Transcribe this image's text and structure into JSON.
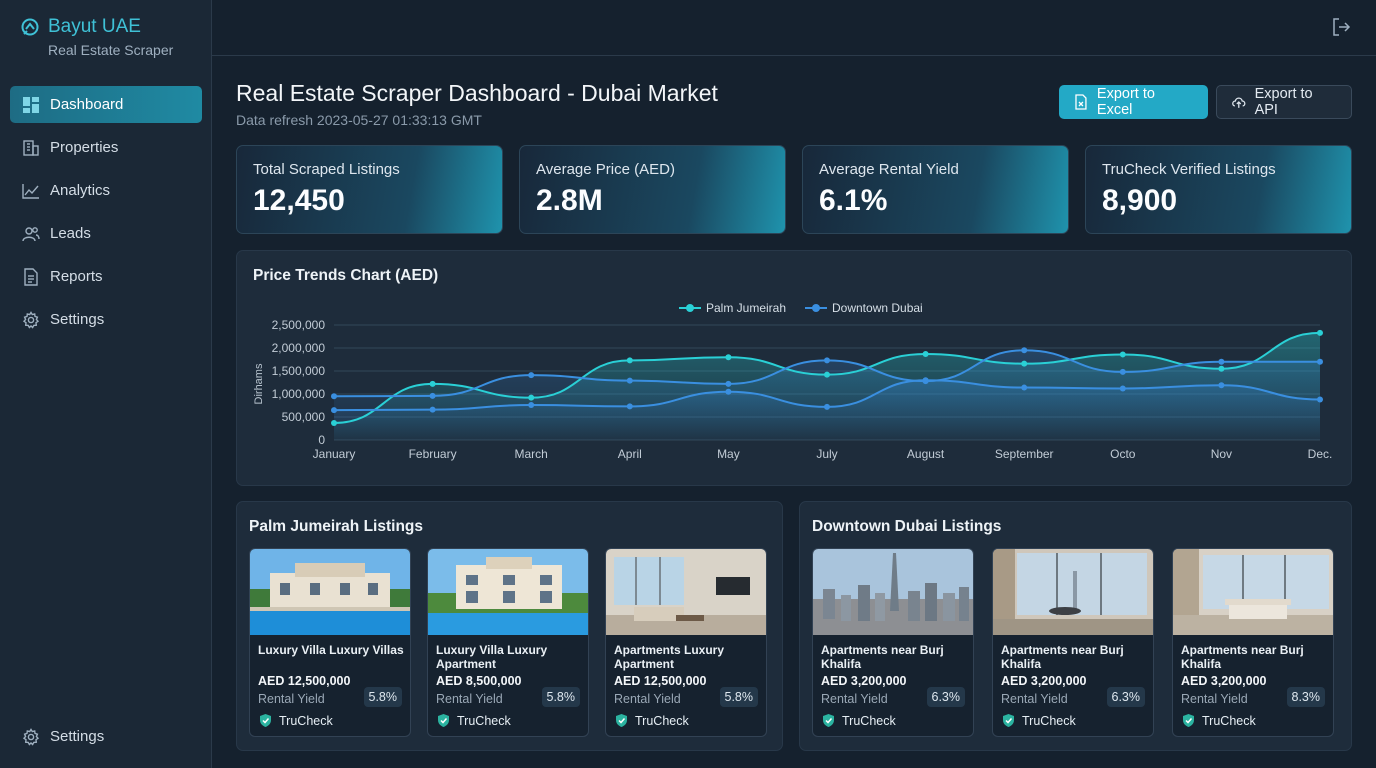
{
  "brand": {
    "title": "Bayut UAE",
    "subtitle": "Real Estate Scraper"
  },
  "sidebar": {
    "items": [
      {
        "label": "Dashboard",
        "icon": "dashboard-icon",
        "active": true
      },
      {
        "label": "Properties",
        "icon": "building-icon"
      },
      {
        "label": "Analytics",
        "icon": "analytics-icon"
      },
      {
        "label": "Leads",
        "icon": "users-icon"
      },
      {
        "label": "Reports",
        "icon": "report-icon"
      },
      {
        "label": "Settings",
        "icon": "gear-icon"
      }
    ],
    "bottom_label": "Settings"
  },
  "header": {
    "title": "Real Estate Scraper Dashboard - Dubai Market",
    "subtitle": "Data refresh 2023-05-27 01:33:13 GMT",
    "export_excel": "Export to Excel",
    "export_api": "Export to API"
  },
  "stats": [
    {
      "label": "Total Scraped Listings",
      "value": "12,450"
    },
    {
      "label": "Average Price (AED)",
      "value": "2.8M"
    },
    {
      "label": "Average Rental Yield",
      "value": "6.1%"
    },
    {
      "label": "TruCheck Verified Listings",
      "value": "8,900"
    }
  ],
  "colors": {
    "accent": "#23a9c6",
    "palm": "#2ad0d6",
    "downtown": "#3a8fe0",
    "bg": "#15212e"
  },
  "chart_data": {
    "type": "line",
    "title": "Price Trends Chart (AED)",
    "ylabel": "Dirhams",
    "xlabel": "",
    "categories": [
      "January",
      "February",
      "March",
      "April",
      "May",
      "July",
      "August",
      "September",
      "Octo",
      "Nov",
      "Dec."
    ],
    "yticks": [
      "2,500,000",
      "2,000,000",
      "1,500,000",
      "1,000,000",
      "500,000",
      "0"
    ],
    "ylim": [
      0,
      2500000
    ],
    "legend_position": "top-center",
    "series": [
      {
        "name": "Palm Jumeirah",
        "values": [
          370000,
          1220000,
          920000,
          1730000,
          1800000,
          1420000,
          1870000,
          1660000,
          1860000,
          1550000,
          2330000
        ]
      },
      {
        "name": "Downtown Dubai",
        "values": [
          950000,
          960000,
          1410000,
          1290000,
          1220000,
          1730000,
          1280000,
          1950000,
          1480000,
          1700000,
          1700000
        ]
      },
      {
        "name": "Downtown Dubai",
        "values": [
          650000,
          660000,
          760000,
          730000,
          1050000,
          720000,
          1300000,
          1140000,
          1120000,
          1190000,
          880000
        ]
      }
    ]
  },
  "palm": {
    "title": "Palm Jumeirah Listings",
    "listings": [
      {
        "name": "Luxury Villa Luxury Villas",
        "price": "AED 12,500,000",
        "yield_label": "Rental Yield",
        "yield": "5.8%",
        "badge": "TruCheck"
      },
      {
        "name": "Luxury Villa Luxury Apartment",
        "price": "AED 8,500,000",
        "yield_label": "Rental Yield",
        "yield": "5.8%",
        "badge": "TruCheck"
      },
      {
        "name": "Apartments Luxury Apartment",
        "price": "AED 12,500,000",
        "yield_label": "Rental Yield",
        "yield": "5.8%",
        "badge": "TruCheck"
      }
    ]
  },
  "downtown": {
    "title": "Downtown Dubai Listings",
    "listings": [
      {
        "name": "Apartments near Burj Khalifa",
        "price": "AED 3,200,000",
        "yield_label": "Rental Yield",
        "yield": "6.3%",
        "badge": "TruCheck"
      },
      {
        "name": "Apartments near Burj Khalifa",
        "price": "AED 3,200,000",
        "yield_label": "Rental Yield",
        "yield": "6.3%",
        "badge": "TruCheck"
      },
      {
        "name": "Apartments near Burj Khalifa",
        "price": "AED 3,200,000",
        "yield_label": "Rental Yield",
        "yield": "8.3%",
        "badge": "TruCheck"
      }
    ]
  }
}
